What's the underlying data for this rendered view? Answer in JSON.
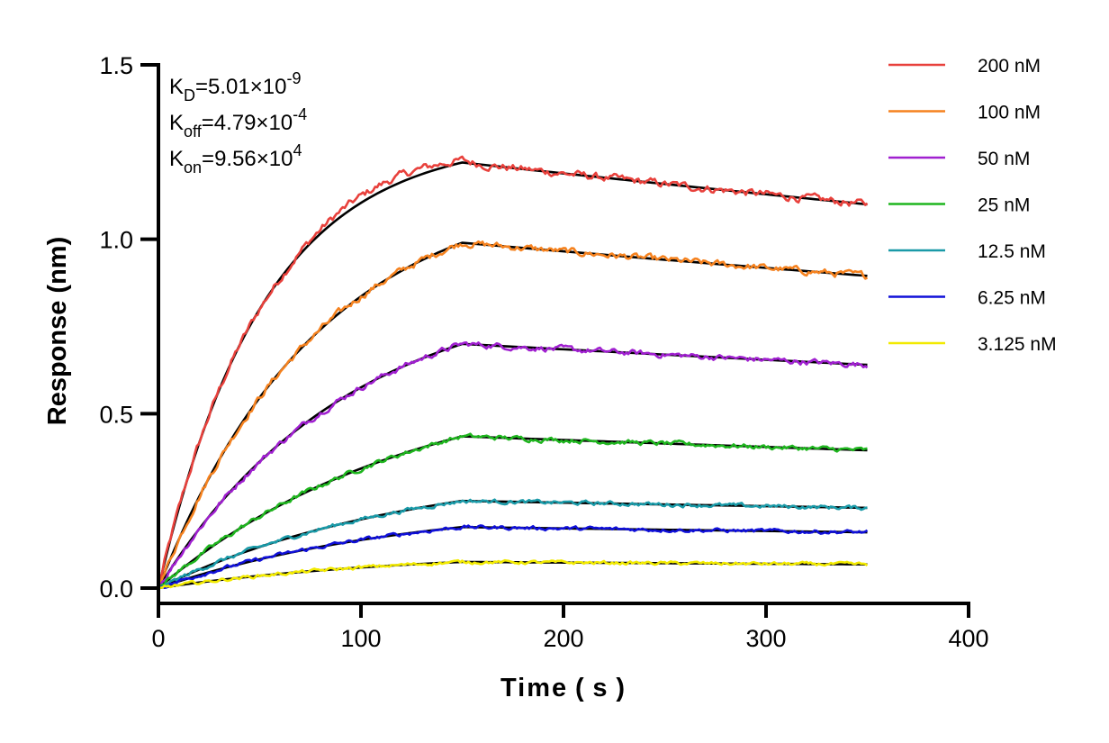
{
  "chart_data": {
    "type": "line",
    "title": "",
    "xlabel": "Time ( s )",
    "ylabel": "Response (nm)",
    "xlim": [
      0,
      400
    ],
    "ylim": [
      0,
      1.5
    ],
    "x_ticks": [
      "0",
      "100",
      "200",
      "300",
      "400"
    ],
    "y_ticks": [
      "0.0",
      "0.5",
      "1.0",
      "1.5"
    ],
    "x_tick_values": [
      0,
      100,
      200,
      300,
      400
    ],
    "y_tick_values": [
      0,
      0.5,
      1.0,
      1.5
    ],
    "grid": false,
    "legend_position": "right",
    "association_end_time": 150,
    "end_time": 350,
    "annotations": [
      {
        "base": "K",
        "sub": "D",
        "text": "=5.01×10",
        "sup": "-9"
      },
      {
        "base": "K",
        "sub": "off",
        "text": "=4.79×10",
        "sup": "-4"
      },
      {
        "base": "K",
        "sub": "on",
        "text": "=9.56×10",
        "sup": "4"
      }
    ],
    "fit_line_color": "#000000",
    "series": [
      {
        "name": "200 nM",
        "color": "#e8413c",
        "peak": 1.22,
        "end": 1.1
      },
      {
        "name": "100 nM",
        "color": "#f5821f",
        "peak": 0.99,
        "end": 0.895
      },
      {
        "name": "50 nM",
        "color": "#a020d0",
        "peak": 0.7,
        "end": 0.64
      },
      {
        "name": "25 nM",
        "color": "#1fb51f",
        "peak": 0.435,
        "end": 0.395
      },
      {
        "name": "12.5 nM",
        "color": "#1a9aa8",
        "peak": 0.25,
        "end": 0.23
      },
      {
        "name": "6.25 nM",
        "color": "#1010d8",
        "peak": 0.175,
        "end": 0.16
      },
      {
        "name": "3.125 nM",
        "color": "#f2ea00",
        "peak": 0.075,
        "end": 0.068
      }
    ]
  }
}
